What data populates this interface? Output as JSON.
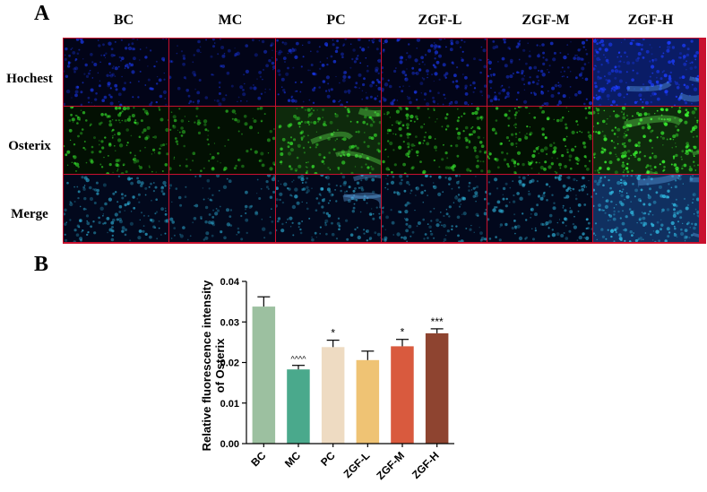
{
  "panel_a": {
    "letter": "A",
    "columns": [
      "BC",
      "MC",
      "PC",
      "ZGF-L",
      "ZGF-M",
      "ZGF-H"
    ],
    "rows": [
      "Hochest",
      "Osterix",
      "Merge"
    ],
    "border_color": "#c8102e",
    "stain_colors": {
      "hochest": "#1c3cff",
      "osterix": "#3cff32",
      "merge": "#30b8e0"
    }
  },
  "panel_b": {
    "letter": "B",
    "chart_data": {
      "type": "bar",
      "categories": [
        "BC",
        "MC",
        "PC",
        "ZGF-L",
        "ZGF-M",
        "ZGF-H"
      ],
      "values": [
        0.0338,
        0.0183,
        0.0238,
        0.0206,
        0.024,
        0.0272
      ],
      "errors": [
        0.0024,
        0.001,
        0.0017,
        0.0022,
        0.0017,
        0.0011
      ],
      "annotations": [
        "",
        "^^^^",
        "*",
        "",
        "*",
        "***"
      ],
      "colors": [
        "#9cc0a0",
        "#4aa98c",
        "#eedbc2",
        "#efc374",
        "#d95a3e",
        "#8e4430"
      ],
      "ylabel": "Relative fluorescence intensity of Osterix",
      "ylabel_lines": [
        "Relative fluorescence intensity",
        "of Osterix"
      ],
      "ylim": [
        0,
        0.04
      ],
      "yticks": [
        "0.00",
        "0.01",
        "0.02",
        "0.03",
        "0.04"
      ],
      "grid": false
    }
  }
}
